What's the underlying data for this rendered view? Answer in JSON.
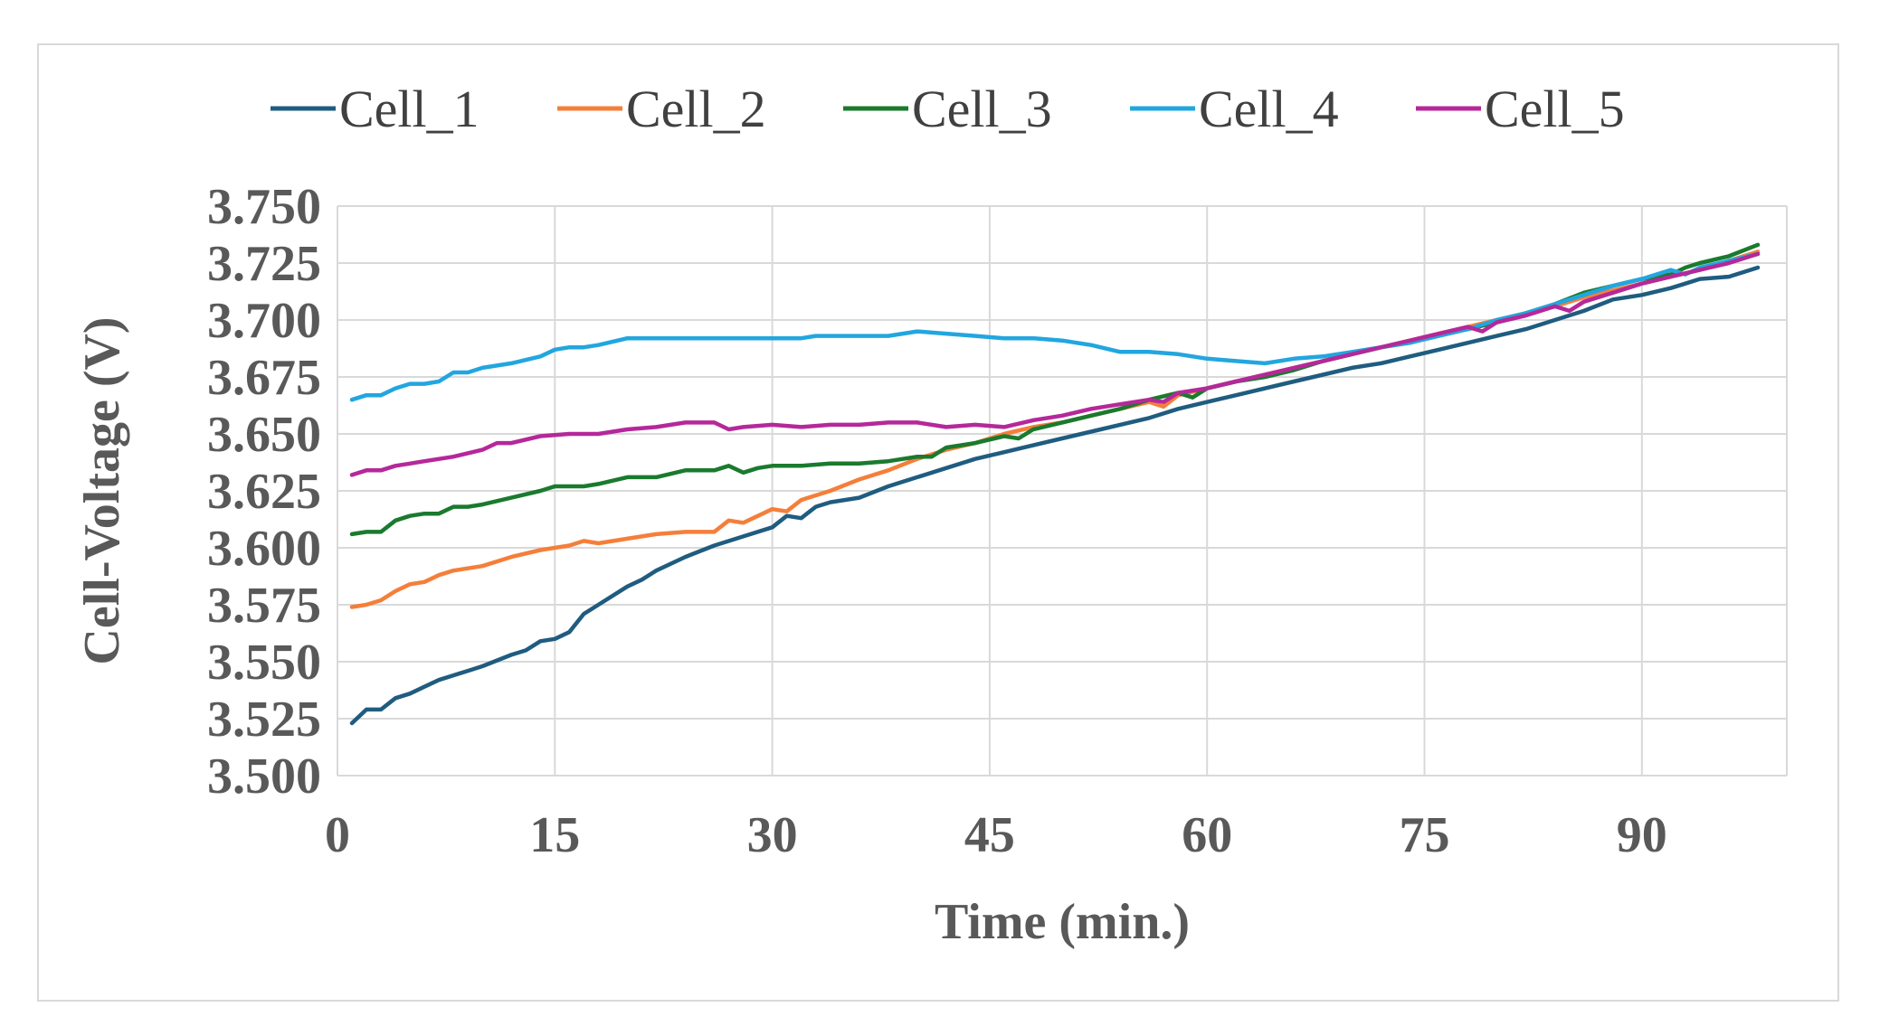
{
  "chart_data": {
    "type": "line",
    "title": "",
    "xlabel": "Time (min.)",
    "ylabel": "Cell-Voltage (V)",
    "xlim": [
      0,
      100
    ],
    "ylim": [
      3.5,
      3.75
    ],
    "xticks": [
      0,
      15,
      30,
      45,
      60,
      75,
      90
    ],
    "xtick_labels": [
      "0",
      "15",
      "30",
      "45",
      "60",
      "75",
      "90"
    ],
    "yticks": [
      3.5,
      3.525,
      3.55,
      3.575,
      3.6,
      3.625,
      3.65,
      3.675,
      3.7,
      3.725,
      3.75
    ],
    "ytick_labels": [
      "3.500",
      "3.525",
      "3.550",
      "3.575",
      "3.600",
      "3.625",
      "3.650",
      "3.675",
      "3.700",
      "3.725",
      "3.750"
    ],
    "grid": true,
    "legend_position": "top",
    "series": [
      {
        "name": "Cell_1",
        "color": "#1F5C80",
        "points": [
          [
            1,
            3.523
          ],
          [
            2,
            3.529
          ],
          [
            3,
            3.529
          ],
          [
            4,
            3.534
          ],
          [
            5,
            3.536
          ],
          [
            6,
            3.539
          ],
          [
            7,
            3.542
          ],
          [
            8,
            3.544
          ],
          [
            9,
            3.546
          ],
          [
            10,
            3.548
          ],
          [
            12,
            3.553
          ],
          [
            13,
            3.555
          ],
          [
            14,
            3.559
          ],
          [
            15,
            3.56
          ],
          [
            16,
            3.563
          ],
          [
            17,
            3.571
          ],
          [
            18,
            3.575
          ],
          [
            20,
            3.583
          ],
          [
            21,
            3.586
          ],
          [
            22,
            3.59
          ],
          [
            24,
            3.596
          ],
          [
            26,
            3.601
          ],
          [
            28,
            3.605
          ],
          [
            30,
            3.609
          ],
          [
            31,
            3.614
          ],
          [
            32,
            3.613
          ],
          [
            33,
            3.618
          ],
          [
            34,
            3.62
          ],
          [
            36,
            3.622
          ],
          [
            38,
            3.627
          ],
          [
            40,
            3.631
          ],
          [
            42,
            3.635
          ],
          [
            44,
            3.639
          ],
          [
            46,
            3.642
          ],
          [
            48,
            3.645
          ],
          [
            50,
            3.648
          ],
          [
            52,
            3.651
          ],
          [
            54,
            3.654
          ],
          [
            56,
            3.657
          ],
          [
            58,
            3.661
          ],
          [
            60,
            3.664
          ],
          [
            62,
            3.667
          ],
          [
            64,
            3.67
          ],
          [
            66,
            3.673
          ],
          [
            68,
            3.676
          ],
          [
            70,
            3.679
          ],
          [
            72,
            3.681
          ],
          [
            74,
            3.684
          ],
          [
            76,
            3.687
          ],
          [
            78,
            3.69
          ],
          [
            80,
            3.693
          ],
          [
            82,
            3.696
          ],
          [
            84,
            3.7
          ],
          [
            86,
            3.704
          ],
          [
            88,
            3.709
          ],
          [
            90,
            3.711
          ],
          [
            92,
            3.714
          ],
          [
            93,
            3.716
          ],
          [
            94,
            3.718
          ],
          [
            96,
            3.719
          ],
          [
            98,
            3.723
          ]
        ]
      },
      {
        "name": "Cell_2",
        "color": "#F47F3A",
        "points": [
          [
            1,
            3.574
          ],
          [
            2,
            3.575
          ],
          [
            3,
            3.577
          ],
          [
            4,
            3.581
          ],
          [
            5,
            3.584
          ],
          [
            6,
            3.585
          ],
          [
            7,
            3.588
          ],
          [
            8,
            3.59
          ],
          [
            10,
            3.592
          ],
          [
            12,
            3.596
          ],
          [
            14,
            3.599
          ],
          [
            16,
            3.601
          ],
          [
            17,
            3.603
          ],
          [
            18,
            3.602
          ],
          [
            20,
            3.604
          ],
          [
            22,
            3.606
          ],
          [
            24,
            3.607
          ],
          [
            26,
            3.607
          ],
          [
            27,
            3.612
          ],
          [
            28,
            3.611
          ],
          [
            30,
            3.617
          ],
          [
            31,
            3.616
          ],
          [
            32,
            3.621
          ],
          [
            34,
            3.625
          ],
          [
            36,
            3.63
          ],
          [
            38,
            3.634
          ],
          [
            40,
            3.639
          ],
          [
            42,
            3.643
          ],
          [
            44,
            3.646
          ],
          [
            46,
            3.65
          ],
          [
            48,
            3.653
          ],
          [
            50,
            3.655
          ],
          [
            52,
            3.658
          ],
          [
            54,
            3.661
          ],
          [
            56,
            3.664
          ],
          [
            57,
            3.662
          ],
          [
            58,
            3.667
          ],
          [
            60,
            3.67
          ],
          [
            62,
            3.673
          ],
          [
            64,
            3.676
          ],
          [
            66,
            3.679
          ],
          [
            68,
            3.682
          ],
          [
            70,
            3.685
          ],
          [
            72,
            3.688
          ],
          [
            74,
            3.691
          ],
          [
            76,
            3.694
          ],
          [
            78,
            3.697
          ],
          [
            80,
            3.7
          ],
          [
            82,
            3.703
          ],
          [
            84,
            3.706
          ],
          [
            86,
            3.71
          ],
          [
            88,
            3.713
          ],
          [
            90,
            3.716
          ],
          [
            92,
            3.719
          ],
          [
            94,
            3.722
          ],
          [
            96,
            3.726
          ],
          [
            98,
            3.73
          ]
        ]
      },
      {
        "name": "Cell_3",
        "color": "#1A7A2E",
        "points": [
          [
            1,
            3.606
          ],
          [
            2,
            3.607
          ],
          [
            3,
            3.607
          ],
          [
            4,
            3.612
          ],
          [
            5,
            3.614
          ],
          [
            6,
            3.615
          ],
          [
            7,
            3.615
          ],
          [
            8,
            3.618
          ],
          [
            9,
            3.618
          ],
          [
            10,
            3.619
          ],
          [
            12,
            3.622
          ],
          [
            14,
            3.625
          ],
          [
            15,
            3.627
          ],
          [
            17,
            3.627
          ],
          [
            18,
            3.628
          ],
          [
            20,
            3.631
          ],
          [
            22,
            3.631
          ],
          [
            24,
            3.634
          ],
          [
            26,
            3.634
          ],
          [
            27,
            3.636
          ],
          [
            28,
            3.633
          ],
          [
            29,
            3.635
          ],
          [
            30,
            3.636
          ],
          [
            32,
            3.636
          ],
          [
            34,
            3.637
          ],
          [
            36,
            3.637
          ],
          [
            38,
            3.638
          ],
          [
            40,
            3.64
          ],
          [
            41,
            3.64
          ],
          [
            42,
            3.644
          ],
          [
            44,
            3.646
          ],
          [
            46,
            3.649
          ],
          [
            47,
            3.648
          ],
          [
            48,
            3.652
          ],
          [
            50,
            3.655
          ],
          [
            52,
            3.658
          ],
          [
            54,
            3.661
          ],
          [
            56,
            3.665
          ],
          [
            58,
            3.668
          ],
          [
            59,
            3.666
          ],
          [
            60,
            3.67
          ],
          [
            62,
            3.673
          ],
          [
            64,
            3.675
          ],
          [
            66,
            3.678
          ],
          [
            68,
            3.682
          ],
          [
            70,
            3.685
          ],
          [
            72,
            3.688
          ],
          [
            74,
            3.69
          ],
          [
            76,
            3.694
          ],
          [
            78,
            3.696
          ],
          [
            80,
            3.699
          ],
          [
            82,
            3.703
          ],
          [
            84,
            3.707
          ],
          [
            86,
            3.712
          ],
          [
            88,
            3.715
          ],
          [
            90,
            3.718
          ],
          [
            92,
            3.72
          ],
          [
            93,
            3.723
          ],
          [
            94,
            3.725
          ],
          [
            96,
            3.728
          ],
          [
            98,
            3.733
          ]
        ]
      },
      {
        "name": "Cell_4",
        "color": "#22A6DF",
        "points": [
          [
            1,
            3.665
          ],
          [
            2,
            3.667
          ],
          [
            3,
            3.667
          ],
          [
            4,
            3.67
          ],
          [
            5,
            3.672
          ],
          [
            6,
            3.672
          ],
          [
            7,
            3.673
          ],
          [
            8,
            3.677
          ],
          [
            9,
            3.677
          ],
          [
            10,
            3.679
          ],
          [
            12,
            3.681
          ],
          [
            14,
            3.684
          ],
          [
            15,
            3.687
          ],
          [
            16,
            3.688
          ],
          [
            17,
            3.688
          ],
          [
            18,
            3.689
          ],
          [
            20,
            3.692
          ],
          [
            22,
            3.692
          ],
          [
            24,
            3.692
          ],
          [
            26,
            3.692
          ],
          [
            28,
            3.692
          ],
          [
            30,
            3.692
          ],
          [
            32,
            3.692
          ],
          [
            33,
            3.693
          ],
          [
            34,
            3.693
          ],
          [
            36,
            3.693
          ],
          [
            38,
            3.693
          ],
          [
            40,
            3.695
          ],
          [
            42,
            3.694
          ],
          [
            44,
            3.693
          ],
          [
            46,
            3.692
          ],
          [
            48,
            3.692
          ],
          [
            50,
            3.691
          ],
          [
            52,
            3.689
          ],
          [
            54,
            3.686
          ],
          [
            55,
            3.686
          ],
          [
            56,
            3.686
          ],
          [
            58,
            3.685
          ],
          [
            60,
            3.683
          ],
          [
            62,
            3.682
          ],
          [
            64,
            3.681
          ],
          [
            66,
            3.683
          ],
          [
            68,
            3.684
          ],
          [
            70,
            3.686
          ],
          [
            72,
            3.688
          ],
          [
            74,
            3.69
          ],
          [
            76,
            3.693
          ],
          [
            78,
            3.696
          ],
          [
            80,
            3.7
          ],
          [
            82,
            3.703
          ],
          [
            84,
            3.707
          ],
          [
            86,
            3.711
          ],
          [
            88,
            3.715
          ],
          [
            90,
            3.718
          ],
          [
            92,
            3.722
          ],
          [
            93,
            3.72
          ],
          [
            94,
            3.723
          ],
          [
            96,
            3.726
          ],
          [
            98,
            3.729
          ]
        ]
      },
      {
        "name": "Cell_5",
        "color": "#B5289A",
        "points": [
          [
            1,
            3.632
          ],
          [
            2,
            3.634
          ],
          [
            3,
            3.634
          ],
          [
            4,
            3.636
          ],
          [
            5,
            3.637
          ],
          [
            6,
            3.638
          ],
          [
            8,
            3.64
          ],
          [
            10,
            3.643
          ],
          [
            11,
            3.646
          ],
          [
            12,
            3.646
          ],
          [
            14,
            3.649
          ],
          [
            16,
            3.65
          ],
          [
            18,
            3.65
          ],
          [
            20,
            3.652
          ],
          [
            22,
            3.653
          ],
          [
            24,
            3.655
          ],
          [
            26,
            3.655
          ],
          [
            27,
            3.652
          ],
          [
            28,
            3.653
          ],
          [
            30,
            3.654
          ],
          [
            32,
            3.653
          ],
          [
            34,
            3.654
          ],
          [
            36,
            3.654
          ],
          [
            38,
            3.655
          ],
          [
            40,
            3.655
          ],
          [
            42,
            3.653
          ],
          [
            44,
            3.654
          ],
          [
            46,
            3.653
          ],
          [
            48,
            3.656
          ],
          [
            50,
            3.658
          ],
          [
            52,
            3.661
          ],
          [
            54,
            3.663
          ],
          [
            56,
            3.665
          ],
          [
            57,
            3.664
          ],
          [
            58,
            3.668
          ],
          [
            60,
            3.67
          ],
          [
            62,
            3.673
          ],
          [
            64,
            3.676
          ],
          [
            66,
            3.679
          ],
          [
            68,
            3.682
          ],
          [
            70,
            3.685
          ],
          [
            72,
            3.688
          ],
          [
            74,
            3.691
          ],
          [
            76,
            3.694
          ],
          [
            78,
            3.697
          ],
          [
            79,
            3.695
          ],
          [
            80,
            3.699
          ],
          [
            82,
            3.702
          ],
          [
            84,
            3.706
          ],
          [
            85,
            3.704
          ],
          [
            86,
            3.708
          ],
          [
            88,
            3.712
          ],
          [
            90,
            3.716
          ],
          [
            92,
            3.719
          ],
          [
            94,
            3.722
          ],
          [
            96,
            3.725
          ],
          [
            98,
            3.729
          ]
        ]
      }
    ]
  }
}
